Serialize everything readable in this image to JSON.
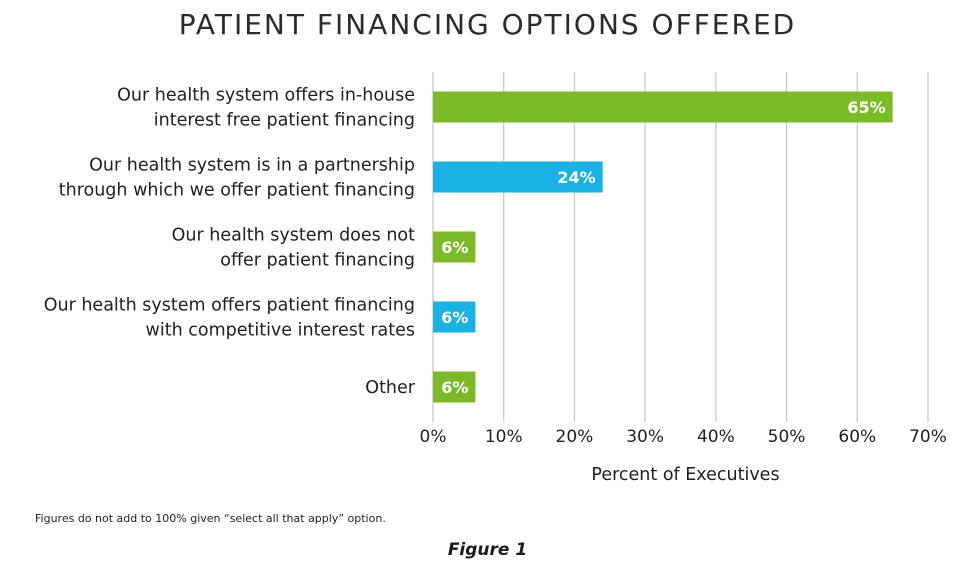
{
  "chart_data": {
    "type": "bar",
    "orientation": "horizontal",
    "title": "PATIENT FINANCING OPTIONS OFFERED",
    "categories": [
      [
        "Our health system offers in-house",
        "interest free patient financing"
      ],
      [
        "Our health system is in a partnership",
        "through which we offer patient financing"
      ],
      [
        "Our health system does not",
        "offer patient financing"
      ],
      [
        "Our health system offers patient financing",
        "with competitive interest rates"
      ],
      [
        "Other"
      ]
    ],
    "values": [
      65,
      24,
      6,
      6,
      6
    ],
    "value_labels": [
      "65%",
      "24%",
      "6%",
      "6%",
      "6%"
    ],
    "bar_colors": [
      "#7cba2a",
      "#1ab1e4",
      "#7cba2a",
      "#1ab1e4",
      "#7cba2a"
    ],
    "xlabel": "Percent of Executives",
    "xlim": [
      0,
      70
    ],
    "xticks": [
      0,
      10,
      20,
      30,
      40,
      50,
      60,
      70
    ],
    "xtick_labels": [
      "0%",
      "10%",
      "20%",
      "30%",
      "40%",
      "50%",
      "60%",
      "70%"
    ],
    "grid": "vertical",
    "grid_color": "#c8c8c8"
  },
  "footnote": "Figures do not add to 100% given “select all that apply” option.",
  "caption": "Figure 1"
}
